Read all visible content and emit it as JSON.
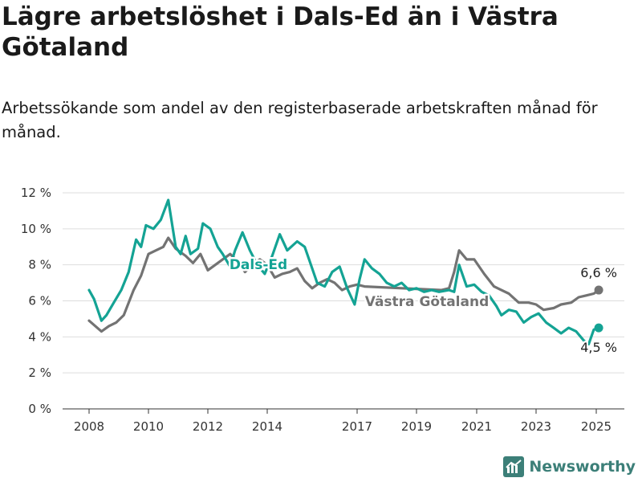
{
  "title": "Lägre arbetslöshet i Dals-Ed än i Västra Götaland",
  "subtitle": "Arbetssökande som andel av den registerbaserade arbetskraften månad för månad.",
  "brand": "Newsworthy",
  "colors": {
    "dals_ed": "#14a394",
    "vastra_gotaland": "#737373",
    "grid": "#dddddd",
    "brand": "#3c7f78"
  },
  "chart_data": {
    "type": "line",
    "xlabel": "",
    "ylabel": "",
    "ylim": [
      0,
      12
    ],
    "yticks": [
      0,
      2,
      4,
      6,
      8,
      10,
      12
    ],
    "ytick_labels": [
      "0 %",
      "2 %",
      "4 %",
      "6 %",
      "8 %",
      "10 %",
      "12 %"
    ],
    "xticks": [
      2008,
      2010,
      2012,
      2014,
      2017,
      2019,
      2021,
      2023,
      2025
    ],
    "xtick_labels": [
      "2008",
      "2010",
      "2012",
      "2014",
      "2017",
      "2019",
      "2021",
      "2023",
      "2025"
    ],
    "grid": true,
    "series": [
      {
        "name": "Västra Götaland",
        "end_label": "6,6 %",
        "points": [
          [
            "2008-01",
            4.9
          ],
          [
            "2008-06",
            4.3
          ],
          [
            "2008-09",
            4.6
          ],
          [
            "2008-12",
            4.8
          ],
          [
            "2009-03",
            5.2
          ],
          [
            "2009-07",
            6.6
          ],
          [
            "2009-10",
            7.4
          ],
          [
            "2010-01",
            8.6
          ],
          [
            "2010-04",
            8.8
          ],
          [
            "2010-07",
            9.0
          ],
          [
            "2010-09",
            9.5
          ],
          [
            "2010-12",
            8.9
          ],
          [
            "2011-04",
            8.5
          ],
          [
            "2011-07",
            8.1
          ],
          [
            "2011-10",
            8.6
          ],
          [
            "2012-01",
            7.7
          ],
          [
            "2012-03",
            7.9
          ],
          [
            "2012-07",
            8.3
          ],
          [
            "2012-10",
            8.6
          ],
          [
            "2013-01",
            8.2
          ],
          [
            "2013-04",
            7.6
          ],
          [
            "2013-07",
            8.0
          ],
          [
            "2013-10",
            8.3
          ],
          [
            "2014-01",
            8.0
          ],
          [
            "2014-04",
            7.3
          ],
          [
            "2014-07",
            7.5
          ],
          [
            "2014-10",
            7.6
          ],
          [
            "2015-01",
            7.8
          ],
          [
            "2015-04",
            7.1
          ],
          [
            "2015-07",
            6.7
          ],
          [
            "2015-10",
            7.0
          ],
          [
            "2016-01",
            7.2
          ],
          [
            "2016-04",
            7.0
          ],
          [
            "2016-07",
            6.6
          ],
          [
            "2016-10",
            6.8
          ],
          [
            "2017-01",
            6.9
          ],
          [
            "2017-04",
            6.8
          ],
          [
            "2019-11",
            6.6
          ],
          [
            "2020-02",
            6.7
          ],
          [
            "2020-04",
            7.6
          ],
          [
            "2020-06",
            8.8
          ],
          [
            "2020-09",
            8.3
          ],
          [
            "2020-12",
            8.3
          ],
          [
            "2021-04",
            7.5
          ],
          [
            "2021-08",
            6.8
          ],
          [
            "2021-11",
            6.6
          ],
          [
            "2022-02",
            6.4
          ],
          [
            "2022-06",
            5.9
          ],
          [
            "2022-10",
            5.9
          ],
          [
            "2023-01",
            5.8
          ],
          [
            "2023-04",
            5.5
          ],
          [
            "2023-08",
            5.6
          ],
          [
            "2023-11",
            5.8
          ],
          [
            "2024-03",
            5.9
          ],
          [
            "2024-06",
            6.2
          ],
          [
            "2024-09",
            6.3
          ],
          [
            "2024-12",
            6.4
          ],
          [
            "2025-02",
            6.6
          ]
        ]
      },
      {
        "name": "Dals-Ed",
        "end_label": "4,5 %",
        "points": [
          [
            "2008-01",
            6.6
          ],
          [
            "2008-03",
            6.1
          ],
          [
            "2008-06",
            4.9
          ],
          [
            "2008-08",
            5.2
          ],
          [
            "2008-11",
            5.9
          ],
          [
            "2009-02",
            6.6
          ],
          [
            "2009-05",
            7.6
          ],
          [
            "2009-08",
            9.4
          ],
          [
            "2009-10",
            9.0
          ],
          [
            "2009-12",
            10.2
          ],
          [
            "2010-03",
            10.0
          ],
          [
            "2010-06",
            10.5
          ],
          [
            "2010-09",
            11.6
          ],
          [
            "2010-12",
            9.0
          ],
          [
            "2011-02",
            8.6
          ],
          [
            "2011-04",
            9.6
          ],
          [
            "2011-06",
            8.6
          ],
          [
            "2011-09",
            8.9
          ],
          [
            "2011-11",
            10.3
          ],
          [
            "2012-02",
            10.0
          ],
          [
            "2012-05",
            9.0
          ],
          [
            "2012-07",
            8.6
          ],
          [
            "2012-10",
            7.9
          ],
          [
            "2012-12",
            8.8
          ],
          [
            "2013-03",
            9.8
          ],
          [
            "2013-06",
            8.8
          ],
          [
            "2013-09",
            8.0
          ],
          [
            "2013-12",
            7.5
          ],
          [
            "2014-03",
            8.5
          ],
          [
            "2014-06",
            9.7
          ],
          [
            "2014-09",
            8.8
          ],
          [
            "2015-01",
            9.3
          ],
          [
            "2015-04",
            9.0
          ],
          [
            "2015-07",
            7.8
          ],
          [
            "2015-09",
            7.0
          ],
          [
            "2015-12",
            6.8
          ],
          [
            "2016-03",
            7.6
          ],
          [
            "2016-06",
            7.9
          ],
          [
            "2016-09",
            6.7
          ],
          [
            "2016-12",
            5.8
          ],
          [
            "2017-02",
            7.2
          ],
          [
            "2017-04",
            8.3
          ],
          [
            "2017-07",
            7.8
          ],
          [
            "2017-10",
            7.5
          ],
          [
            "2018-01",
            7.0
          ],
          [
            "2018-04",
            6.8
          ],
          [
            "2018-07",
            7.0
          ],
          [
            "2018-10",
            6.6
          ],
          [
            "2019-01",
            6.7
          ],
          [
            "2019-04",
            6.5
          ],
          [
            "2019-07",
            6.6
          ],
          [
            "2019-10",
            6.5
          ],
          [
            "2020-02",
            6.6
          ],
          [
            "2020-04",
            6.5
          ],
          [
            "2020-06",
            8.0
          ],
          [
            "2020-09",
            6.8
          ],
          [
            "2020-12",
            6.9
          ],
          [
            "2021-03",
            6.5
          ],
          [
            "2021-06",
            6.3
          ],
          [
            "2021-09",
            5.7
          ],
          [
            "2021-11",
            5.2
          ],
          [
            "2022-02",
            5.5
          ],
          [
            "2022-05",
            5.4
          ],
          [
            "2022-08",
            4.8
          ],
          [
            "2022-11",
            5.1
          ],
          [
            "2023-02",
            5.3
          ],
          [
            "2023-05",
            4.8
          ],
          [
            "2023-08",
            4.5
          ],
          [
            "2023-11",
            4.2
          ],
          [
            "2024-02",
            4.5
          ],
          [
            "2024-05",
            4.3
          ],
          [
            "2024-08",
            3.8
          ],
          [
            "2024-10",
            3.6
          ],
          [
            "2024-12",
            4.4
          ],
          [
            "2025-02",
            4.5
          ]
        ]
      }
    ]
  }
}
